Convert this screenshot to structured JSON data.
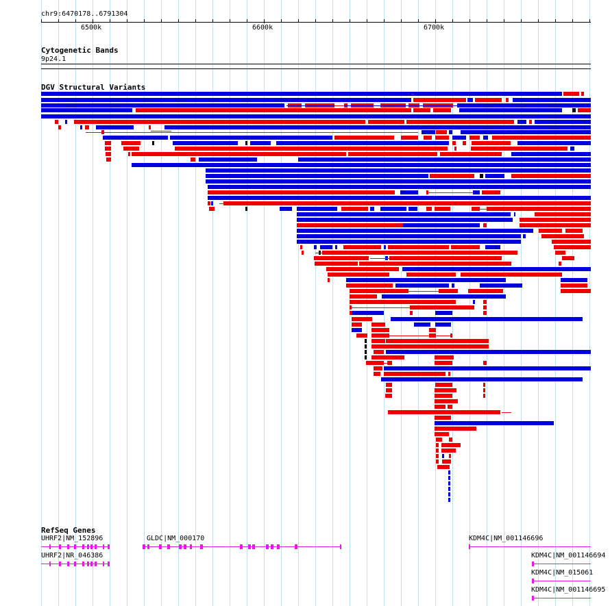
{
  "browser": {
    "location": "chr9:6470178..6791304",
    "scale_ticks": [
      {
        "label": "6500k",
        "value": 6500000
      },
      {
        "label": "6600k",
        "value": 6600000
      },
      {
        "label": "6700k",
        "value": 6700000
      }
    ]
  },
  "tracks": {
    "cytobands": {
      "title": "Cytogenetic Bands",
      "band_label": "9p24.1"
    },
    "dgv": {
      "title": "DGV Structural Variants",
      "colors": {
        "gain": "#0000dd",
        "loss": "#ee0000",
        "other": "#000000"
      }
    },
    "refseq": {
      "title": "RefSeq Genes",
      "color": "#e619e6",
      "genes": [
        {
          "label": "UHRF2|NM_152896"
        },
        {
          "label": "UHRF2|NR_046386"
        },
        {
          "label": "GLDC|NM_000170"
        },
        {
          "label": "KDM4C|NM_001146696"
        },
        {
          "label": "KDM4C|NM_001146694"
        },
        {
          "label": "KDM4C|NM_015061"
        },
        {
          "label": "KDM4C|NM_001146695"
        }
      ]
    }
  }
}
